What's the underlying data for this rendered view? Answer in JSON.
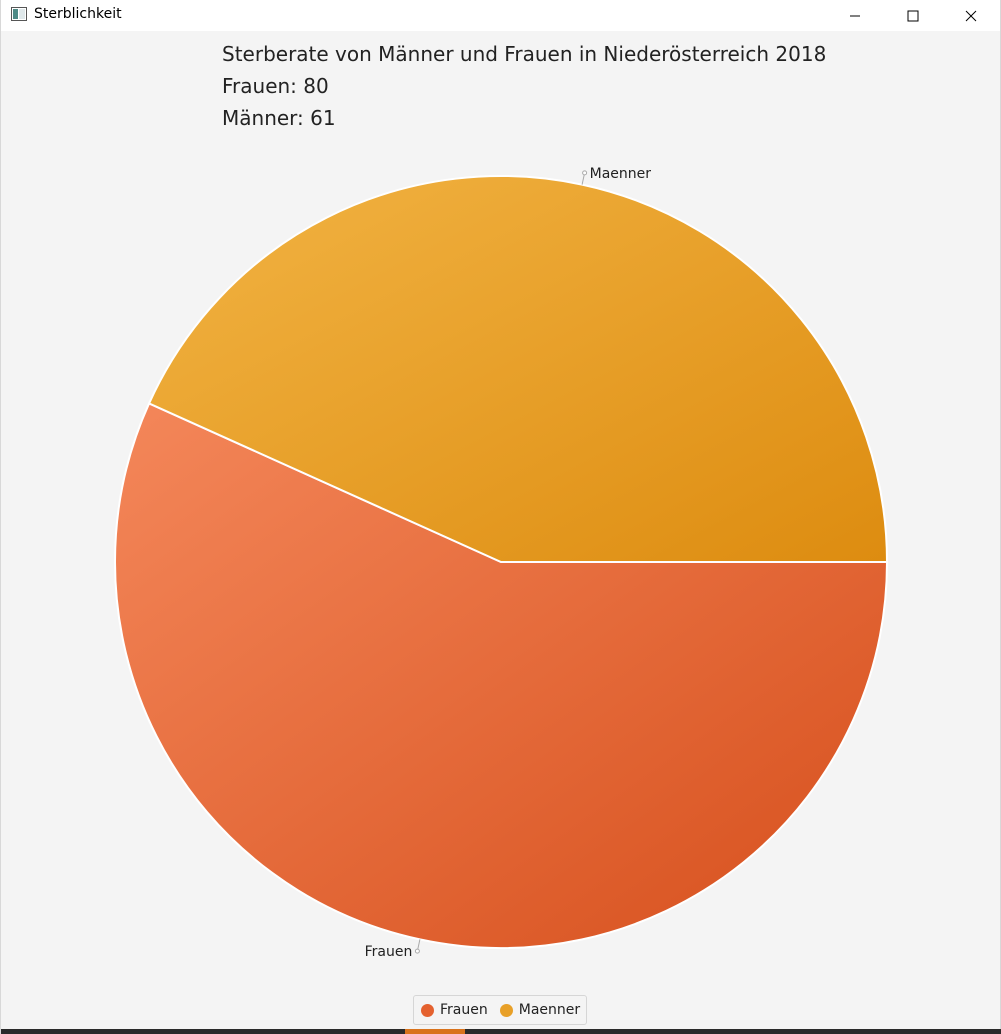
{
  "window": {
    "title": "Sterblichkeit"
  },
  "header": {
    "title": "Sterberate von Männer und Frauen in Niederösterreich 2018",
    "line_frauen": "Frauen: 80",
    "line_maenner": "Männer: 61"
  },
  "chart_data": {
    "type": "pie",
    "categories": [
      "Frauen",
      "Maenner"
    ],
    "values": [
      80,
      61
    ],
    "colors": [
      "#e4612f",
      "#e8a028"
    ],
    "legend": [
      "Frauen",
      "Maenner"
    ],
    "legend_position": "bottom"
  },
  "icons": {
    "minimize": "minimize-icon",
    "maximize": "maximize-icon",
    "close": "close-icon"
  }
}
